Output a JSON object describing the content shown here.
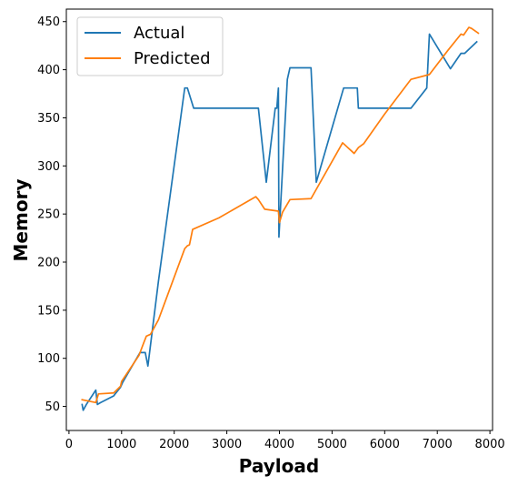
{
  "chart_data": {
    "type": "line",
    "title": "",
    "xlabel": "Payload",
    "ylabel": "Memory",
    "xlim": [
      -50,
      8050
    ],
    "ylim": [
      25,
      463
    ],
    "x_ticks": [
      0,
      1000,
      2000,
      3000,
      4000,
      5000,
      6000,
      7000,
      8000
    ],
    "y_ticks": [
      50,
      100,
      150,
      200,
      250,
      300,
      350,
      400,
      450
    ],
    "grid": false,
    "legend_position": "top-left",
    "series": [
      {
        "name": "Actual",
        "color": "#1f77b4",
        "points": [
          [
            250,
            52
          ],
          [
            270,
            46
          ],
          [
            330,
            52
          ],
          [
            510,
            67
          ],
          [
            540,
            52
          ],
          [
            600,
            54
          ],
          [
            850,
            61
          ],
          [
            980,
            70
          ],
          [
            1020,
            75
          ],
          [
            1350,
            106
          ],
          [
            1450,
            106
          ],
          [
            1500,
            92
          ],
          [
            1700,
            180
          ],
          [
            2200,
            381
          ],
          [
            2250,
            381
          ],
          [
            2370,
            360
          ],
          [
            3600,
            360
          ],
          [
            3750,
            283
          ],
          [
            3920,
            360
          ],
          [
            3950,
            360
          ],
          [
            3980,
            381
          ],
          [
            3990,
            226
          ],
          [
            4150,
            390
          ],
          [
            4200,
            402
          ],
          [
            4600,
            402
          ],
          [
            4700,
            283
          ],
          [
            5220,
            381
          ],
          [
            5480,
            381
          ],
          [
            5500,
            360
          ],
          [
            6500,
            360
          ],
          [
            6800,
            381
          ],
          [
            6850,
            437
          ],
          [
            7250,
            401
          ],
          [
            7450,
            417
          ],
          [
            7520,
            417
          ],
          [
            7750,
            429
          ]
        ]
      },
      {
        "name": "Predicted",
        "color": "#ff7f0e",
        "points": [
          [
            250,
            57
          ],
          [
            510,
            54
          ],
          [
            560,
            63
          ],
          [
            850,
            64
          ],
          [
            980,
            71
          ],
          [
            1000,
            76
          ],
          [
            1330,
            103
          ],
          [
            1420,
            116
          ],
          [
            1470,
            123
          ],
          [
            1550,
            125
          ],
          [
            1700,
            140
          ],
          [
            2200,
            214
          ],
          [
            2250,
            217
          ],
          [
            2290,
            218
          ],
          [
            2350,
            234
          ],
          [
            2850,
            246
          ],
          [
            3550,
            268
          ],
          [
            3600,
            265
          ],
          [
            3720,
            255
          ],
          [
            3980,
            253
          ],
          [
            4000,
            241
          ],
          [
            4060,
            252
          ],
          [
            4200,
            265
          ],
          [
            4600,
            266
          ],
          [
            5200,
            324
          ],
          [
            5420,
            313
          ],
          [
            5500,
            319
          ],
          [
            5600,
            323
          ],
          [
            6000,
            354
          ],
          [
            6500,
            390
          ],
          [
            6850,
            395
          ],
          [
            7200,
            420
          ],
          [
            7450,
            437
          ],
          [
            7500,
            436
          ],
          [
            7600,
            444
          ],
          [
            7650,
            443
          ],
          [
            7780,
            438
          ]
        ]
      }
    ]
  }
}
